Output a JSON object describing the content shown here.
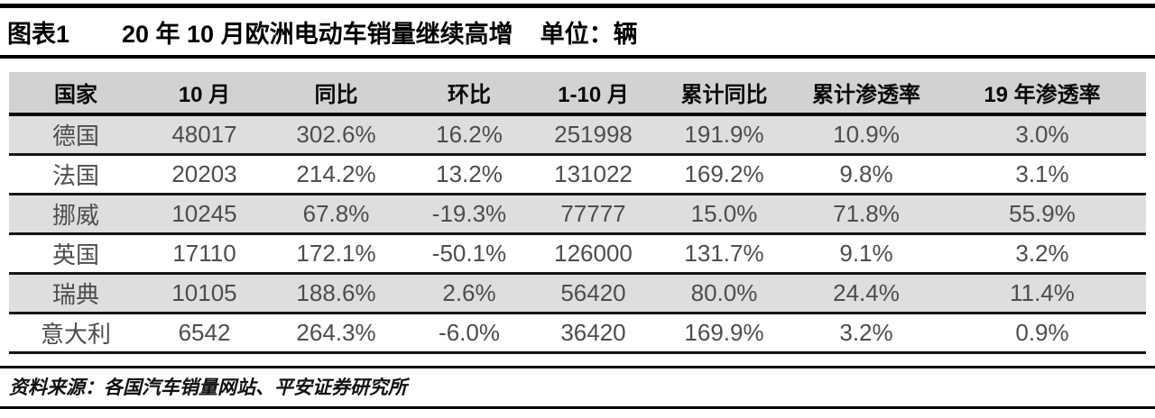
{
  "figure": {
    "label": "图表1",
    "title": "20 年 10 月欧洲电动车销量继续高增",
    "unit": "单位：辆"
  },
  "table": {
    "columns": [
      "国家",
      "10 月",
      "同比",
      "环比",
      "1-10 月",
      "累计同比",
      "累计渗透率",
      "19 年渗透率"
    ],
    "rows": [
      [
        "德国",
        "48017",
        "302.6%",
        "16.2%",
        "251998",
        "191.9%",
        "10.9%",
        "3.0%"
      ],
      [
        "法国",
        "20203",
        "214.2%",
        "13.2%",
        "131022",
        "169.2%",
        "9.8%",
        "3.1%"
      ],
      [
        "挪威",
        "10245",
        "67.8%",
        "-19.3%",
        "77777",
        "15.0%",
        "71.8%",
        "55.9%"
      ],
      [
        "英国",
        "17110",
        "172.1%",
        "-50.1%",
        "126000",
        "131.7%",
        "9.1%",
        "3.2%"
      ],
      [
        "瑞典",
        "10105",
        "188.6%",
        "2.6%",
        "56420",
        "80.0%",
        "24.4%",
        "11.4%"
      ],
      [
        "意大利",
        "6542",
        "264.3%",
        "-6.0%",
        "36420",
        "169.9%",
        "3.2%",
        "0.9%"
      ]
    ]
  },
  "footer": {
    "source": "资料来源：各国汽车销量网站、平安证券研究所"
  },
  "colors": {
    "header_bg": "#d2d2d2",
    "stripe_bg": "#dedede",
    "rule": "#141414",
    "cell_text": "#4d4d4d"
  }
}
